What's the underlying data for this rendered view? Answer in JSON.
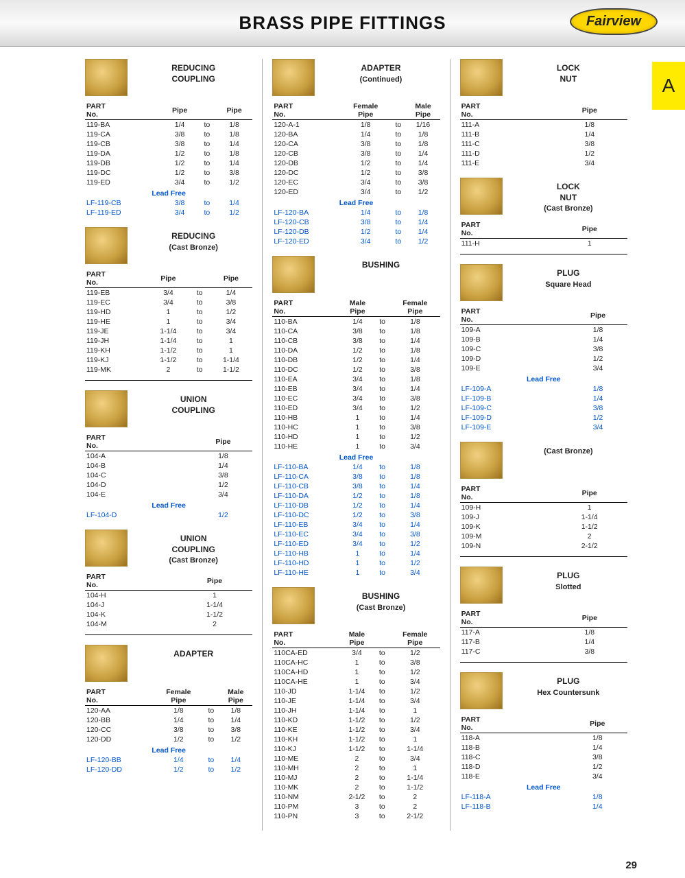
{
  "page_title": "BRASS PIPE FITTINGS",
  "brand": "Fairview",
  "side_tab": "A",
  "page_number": "29",
  "lead_free_label": "Lead Free",
  "colors": {
    "link": "#0055cc",
    "thumb_light": "#f0d080",
    "thumb_dark": "#9a7020"
  },
  "col1": [
    {
      "title": "REDUCING COUPLING",
      "headers": [
        "PART No.",
        "Pipe",
        "",
        "Pipe"
      ],
      "rows": [
        [
          "119-BA",
          "1/4",
          "to",
          "1/8"
        ],
        [
          "119-CA",
          "3/8",
          "to",
          "1/8"
        ],
        [
          "119-CB",
          "3/8",
          "to",
          "1/4"
        ],
        [
          "119-DA",
          "1/2",
          "to",
          "1/8"
        ],
        [
          "119-DB",
          "1/2",
          "to",
          "1/4"
        ],
        [
          "119-DC",
          "1/2",
          "to",
          "3/8"
        ],
        [
          "119-ED",
          "3/4",
          "to",
          "1/2"
        ]
      ],
      "lf": [
        [
          "LF-119-CB",
          "3/8",
          "to",
          "1/4"
        ],
        [
          "LF-119-ED",
          "3/4",
          "to",
          "1/2"
        ]
      ]
    },
    {
      "title": "REDUCING",
      "subtitle": "(Cast Bronze)",
      "headers": [
        "PART No.",
        "Pipe",
        "",
        "Pipe"
      ],
      "rows": [
        [
          "119-EB",
          "3/4",
          "to",
          "1/4"
        ],
        [
          "119-EC",
          "3/4",
          "to",
          "3/8"
        ],
        [
          "119-HD",
          "1",
          "to",
          "1/2"
        ],
        [
          "119-HE",
          "1",
          "to",
          "3/4"
        ],
        [
          "119-JE",
          "1-1/4",
          "to",
          "3/4"
        ],
        [
          "119-JH",
          "1-1/4",
          "to",
          "1"
        ],
        [
          "119-KH",
          "1-1/2",
          "to",
          "1"
        ],
        [
          "119-KJ",
          "1-1/2",
          "to",
          "1-1/4"
        ],
        [
          "119-MK",
          "2",
          "to",
          "1-1/2"
        ]
      ],
      "hr_after": true
    },
    {
      "title": "UNION COUPLING",
      "headers": [
        "PART No.",
        "Pipe"
      ],
      "rows": [
        [
          "104-A",
          "1/8"
        ],
        [
          "104-B",
          "1/4"
        ],
        [
          "104-C",
          "3/8"
        ],
        [
          "104-D",
          "1/2"
        ],
        [
          "104-E",
          "3/4"
        ]
      ],
      "lf": [
        [
          "LF-104-D",
          "1/2"
        ]
      ]
    },
    {
      "title": "UNION COUPLING",
      "subtitle": "(Cast Bronze)",
      "headers": [
        "PART No.",
        "Pipe"
      ],
      "rows": [
        [
          "104-H",
          "1"
        ],
        [
          "104-J",
          "1-1/4"
        ],
        [
          "104-K",
          "1-1/2"
        ],
        [
          "104-M",
          "2"
        ]
      ],
      "hr_after": true
    },
    {
      "title": "ADAPTER",
      "headers": [
        "PART No.",
        "Female Pipe",
        "",
        "Male Pipe"
      ],
      "rows": [
        [
          "120-AA",
          "1/8",
          "to",
          "1/8"
        ],
        [
          "120-BB",
          "1/4",
          "to",
          "1/4"
        ],
        [
          "120-CC",
          "3/8",
          "to",
          "3/8"
        ],
        [
          "120-DD",
          "1/2",
          "to",
          "1/2"
        ]
      ],
      "lf": [
        [
          "LF-120-BB",
          "1/4",
          "to",
          "1/4"
        ],
        [
          "LF-120-DD",
          "1/2",
          "to",
          "1/2"
        ]
      ]
    }
  ],
  "col2": [
    {
      "title": "ADAPTER",
      "subtitle": "(Continued)",
      "headers": [
        "PART No.",
        "Female Pipe",
        "",
        "Male Pipe"
      ],
      "rows": [
        [
          "120-A-1",
          "1/8",
          "to",
          "1/16"
        ],
        [
          "120-BA",
          "1/4",
          "to",
          "1/8"
        ],
        [
          "120-CA",
          "3/8",
          "to",
          "1/8"
        ],
        [
          "120-CB",
          "3/8",
          "to",
          "1/4"
        ],
        [
          "120-DB",
          "1/2",
          "to",
          "1/4"
        ],
        [
          "120-DC",
          "1/2",
          "to",
          "3/8"
        ],
        [
          "120-EC",
          "3/4",
          "to",
          "3/8"
        ],
        [
          "120-ED",
          "3/4",
          "to",
          "1/2"
        ]
      ],
      "lf": [
        [
          "LF-120-BA",
          "1/4",
          "to",
          "1/8"
        ],
        [
          "LF-120-CB",
          "3/8",
          "to",
          "1/4"
        ],
        [
          "LF-120-DB",
          "1/2",
          "to",
          "1/4"
        ],
        [
          "LF-120-ED",
          "3/4",
          "to",
          "1/2"
        ]
      ]
    },
    {
      "title": "BUSHING",
      "headers": [
        "PART No.",
        "Male Pipe",
        "",
        "Female Pipe"
      ],
      "rows": [
        [
          "110-BA",
          "1/4",
          "to",
          "1/8"
        ],
        [
          "110-CA",
          "3/8",
          "to",
          "1/8"
        ],
        [
          "110-CB",
          "3/8",
          "to",
          "1/4"
        ],
        [
          "110-DA",
          "1/2",
          "to",
          "1/8"
        ],
        [
          "110-DB",
          "1/2",
          "to",
          "1/4"
        ],
        [
          "110-DC",
          "1/2",
          "to",
          "3/8"
        ],
        [
          "110-EA",
          "3/4",
          "to",
          "1/8"
        ],
        [
          "110-EB",
          "3/4",
          "to",
          "1/4"
        ],
        [
          "110-EC",
          "3/4",
          "to",
          "3/8"
        ],
        [
          "110-ED",
          "3/4",
          "to",
          "1/2"
        ],
        [
          "110-HB",
          "1",
          "to",
          "1/4"
        ],
        [
          "110-HC",
          "1",
          "to",
          "3/8"
        ],
        [
          "110-HD",
          "1",
          "to",
          "1/2"
        ],
        [
          "110-HE",
          "1",
          "to",
          "3/4"
        ]
      ],
      "lf": [
        [
          "LF-110-BA",
          "1/4",
          "to",
          "1/8"
        ],
        [
          "LF-110-CA",
          "3/8",
          "to",
          "1/8"
        ],
        [
          "LF-110-CB",
          "3/8",
          "to",
          "1/4"
        ],
        [
          "LF-110-DA",
          "1/2",
          "to",
          "1/8"
        ],
        [
          "LF-110-DB",
          "1/2",
          "to",
          "1/4"
        ],
        [
          "LF-110-DC",
          "1/2",
          "to",
          "3/8"
        ],
        [
          "LF-110-EB",
          "3/4",
          "to",
          "1/4"
        ],
        [
          "LF-110-EC",
          "3/4",
          "to",
          "3/8"
        ],
        [
          "LF-110-ED",
          "3/4",
          "to",
          "1/2"
        ],
        [
          "LF-110-HB",
          "1",
          "to",
          "1/4"
        ],
        [
          "LF-110-HD",
          "1",
          "to",
          "1/2"
        ],
        [
          "LF-110-HE",
          "1",
          "to",
          "3/4"
        ]
      ]
    },
    {
      "title": "BUSHING",
      "subtitle": "(Cast Bronze)",
      "headers": [
        "PART No.",
        "Male Pipe",
        "",
        "Female Pipe"
      ],
      "rows": [
        [
          "110CA-ED",
          "3/4",
          "to",
          "1/2"
        ],
        [
          "110CA-HC",
          "1",
          "to",
          "3/8"
        ],
        [
          "110CA-HD",
          "1",
          "to",
          "1/2"
        ],
        [
          "110CA-HE",
          "1",
          "to",
          "3/4"
        ],
        [
          "110-JD",
          "1-1/4",
          "to",
          "1/2"
        ],
        [
          "110-JE",
          "1-1/4",
          "to",
          "3/4"
        ],
        [
          "110-JH",
          "1-1/4",
          "to",
          "1"
        ],
        [
          "110-KD",
          "1-1/2",
          "to",
          "1/2"
        ],
        [
          "110-KE",
          "1-1/2",
          "to",
          "3/4"
        ],
        [
          "110-KH",
          "1-1/2",
          "to",
          "1"
        ],
        [
          "110-KJ",
          "1-1/2",
          "to",
          "1-1/4"
        ],
        [
          "110-ME",
          "2",
          "to",
          "3/4"
        ],
        [
          "110-MH",
          "2",
          "to",
          "1"
        ],
        [
          "110-MJ",
          "2",
          "to",
          "1-1/4"
        ],
        [
          "110-MK",
          "2",
          "to",
          "1-1/2"
        ],
        [
          "110-NM",
          "2-1/2",
          "to",
          "2"
        ],
        [
          "110-PM",
          "3",
          "to",
          "2"
        ],
        [
          "110-PN",
          "3",
          "to",
          "2-1/2"
        ]
      ]
    }
  ],
  "col3": [
    {
      "title": "LOCK NUT",
      "headers": [
        "PART No.",
        "Pipe"
      ],
      "rows": [
        [
          "111-A",
          "1/8"
        ],
        [
          "111-B",
          "1/4"
        ],
        [
          "111-C",
          "3/8"
        ],
        [
          "111-D",
          "1/2"
        ],
        [
          "111-E",
          "3/4"
        ]
      ]
    },
    {
      "title": "LOCK NUT",
      "subtitle": "(Cast Bronze)",
      "headers": [
        "PART No.",
        "Pipe"
      ],
      "rows": [
        [
          "111-H",
          "1"
        ]
      ],
      "hr_after": true
    },
    {
      "title": "PLUG",
      "subtitle": "Square Head",
      "headers": [
        "PART No.",
        "Pipe"
      ],
      "rows": [
        [
          "109-A",
          "1/8"
        ],
        [
          "109-B",
          "1/4"
        ],
        [
          "109-C",
          "3/8"
        ],
        [
          "109-D",
          "1/2"
        ],
        [
          "109-E",
          "3/4"
        ]
      ],
      "lf": [
        [
          "LF-109-A",
          "1/8"
        ],
        [
          "LF-109-B",
          "1/4"
        ],
        [
          "LF-109-C",
          "3/8"
        ],
        [
          "LF-109-D",
          "1/2"
        ],
        [
          "LF-109-E",
          "3/4"
        ]
      ]
    },
    {
      "title": "",
      "subtitle": "(Cast Bronze)",
      "headers": [
        "PART No.",
        "Pipe"
      ],
      "rows": [
        [
          "109-H",
          "1"
        ],
        [
          "109-J",
          "1-1/4"
        ],
        [
          "109-K",
          "1-1/2"
        ],
        [
          "109-M",
          "2"
        ],
        [
          "109-N",
          "2-1/2"
        ]
      ],
      "hr_after": true
    },
    {
      "title": "PLUG",
      "subtitle": "Slotted",
      "headers": [
        "PART No.",
        "Pipe"
      ],
      "rows": [
        [
          "117-A",
          "1/8"
        ],
        [
          "117-B",
          "1/4"
        ],
        [
          "117-C",
          "3/8"
        ]
      ],
      "hr_after": true
    },
    {
      "title": "PLUG",
      "subtitle": "Hex Countersunk",
      "headers": [
        "PART No.",
        "Pipe"
      ],
      "rows": [
        [
          "118-A",
          "1/8"
        ],
        [
          "118-B",
          "1/4"
        ],
        [
          "118-C",
          "3/8"
        ],
        [
          "118-D",
          "1/2"
        ],
        [
          "118-E",
          "3/4"
        ]
      ],
      "lf": [
        [
          "LF-118-A",
          "1/8"
        ],
        [
          "LF-118-B",
          "1/4"
        ]
      ]
    }
  ]
}
